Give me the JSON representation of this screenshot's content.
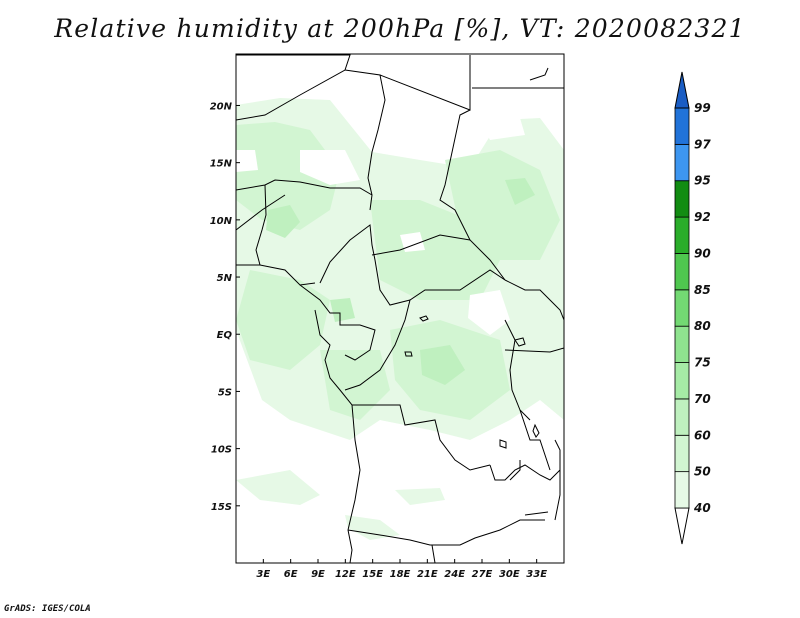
{
  "title": "Relative humidity at 200hPa [%], VT: 2020082321",
  "credit": "GrADS: IGES/COLA",
  "map": {
    "lon_range": [
      0,
      36
    ],
    "lat_range": [
      -20,
      24.5
    ],
    "lon_ticks": [
      "3E",
      "6E",
      "9E",
      "12E",
      "15E",
      "18E",
      "21E",
      "24E",
      "27E",
      "30E",
      "33E"
    ],
    "lat_ticks": [
      "20N",
      "15N",
      "10N",
      "5N",
      "EQ",
      "5S",
      "10S",
      "15S"
    ]
  },
  "colorbar": {
    "levels": [
      "40",
      "50",
      "60",
      "70",
      "75",
      "80",
      "85",
      "90",
      "92",
      "95",
      "97",
      "99"
    ],
    "colors": [
      "#ffffff",
      "#e6f9e6",
      "#d2f5d2",
      "#bff0bf",
      "#a6eba6",
      "#8fe38f",
      "#73d973",
      "#4fc74f",
      "#2aad2a",
      "#128c12",
      "#3d96f0",
      "#2173d9",
      "#1a5dc4"
    ],
    "extend": "both"
  }
}
